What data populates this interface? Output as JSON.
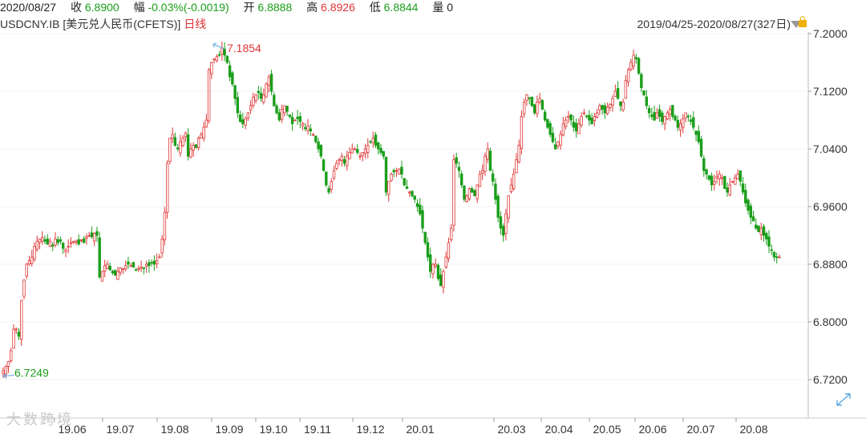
{
  "topbar": {
    "date": "2020/08/27",
    "close_label": "收",
    "close_value": "6.8900",
    "change_label": "幅",
    "change_value": "-0.03%(-0.0019)",
    "open_label": "开",
    "open_value": "6.8888",
    "high_label": "高",
    "high_value": "6.8926",
    "low_label": "低",
    "low_value": "6.8844",
    "volume_label": "量",
    "volume_value": "0"
  },
  "titlebar": {
    "symbol": "USDCNY.IB [美元兑人民币(CFETS)]",
    "period": "日线",
    "range": "2019/04/25-2020/08/27(327日)"
  },
  "watermark": "大数跨境",
  "colors": {
    "up": "#e03434",
    "down": "#1a9e1a",
    "axis": "#999999",
    "grid": "#f2f2f2"
  },
  "icons": [
    "dropdown-triangle-icon",
    "lock-icon",
    "expand-icon"
  ],
  "chart_data": {
    "type": "candlestick",
    "title": "USDCNY.IB [美元兑人民币(CFETS)]",
    "period": "日线",
    "y_ticks": [
      "7.2000",
      "7.1200",
      "7.0400",
      "6.9600",
      "6.8800",
      "6.8000",
      "6.7200"
    ],
    "ylim": [
      6.7,
      7.22
    ],
    "x_ticks": [
      "19.06",
      "19.07",
      "19.08",
      "19.09",
      "19.10",
      "19.11",
      "19.12",
      "20.01",
      "20.03",
      "20.04",
      "20.05",
      "20.06",
      "20.07",
      "20.08"
    ],
    "grid": true,
    "annotations": [
      {
        "text": "7.1854",
        "value": 7.1854
      },
      {
        "text": "6.7249",
        "value": 6.7249
      }
    ],
    "closes": [
      6.732,
      6.738,
      6.745,
      6.76,
      6.79,
      6.79,
      6.78,
      6.83,
      6.858,
      6.88,
      6.885,
      6.89,
      6.905,
      6.912,
      6.915,
      6.917,
      6.912,
      6.908,
      6.912,
      6.905,
      6.915,
      6.91,
      6.912,
      6.902,
      6.9,
      6.905,
      6.91,
      6.912,
      6.912,
      6.908,
      6.914,
      6.91,
      6.918,
      6.92,
      6.918,
      6.923,
      6.92,
      6.862,
      6.87,
      6.878,
      6.88,
      6.872,
      6.868,
      6.865,
      6.87,
      6.875,
      6.874,
      6.878,
      6.88,
      6.878,
      6.876,
      6.872,
      6.874,
      6.876,
      6.875,
      6.88,
      6.878,
      6.882,
      6.88,
      6.885,
      6.89,
      6.915,
      6.952,
      7.02,
      7.055,
      7.06,
      7.045,
      7.04,
      7.05,
      7.055,
      7.062,
      7.03,
      7.04,
      7.045,
      7.042,
      7.055,
      7.06,
      7.07,
      7.08,
      7.15,
      7.16,
      7.165,
      7.168,
      7.17,
      7.18,
      7.17,
      7.16,
      7.14,
      7.13,
      7.11,
      7.09,
      7.078,
      7.075,
      7.082,
      7.09,
      7.1,
      7.112,
      7.115,
      7.118,
      7.11,
      7.115,
      7.13,
      7.14,
      7.12,
      7.1,
      7.09,
      7.08,
      7.095,
      7.1,
      7.092,
      7.085,
      7.075,
      7.08,
      7.082,
      7.078,
      7.075,
      7.068,
      7.072,
      7.065,
      7.06,
      7.05,
      7.04,
      7.03,
      7.01,
      6.99,
      6.98,
      6.995,
      7.01,
      7.02,
      7.025,
      7.03,
      7.02,
      7.03,
      7.035,
      7.04,
      7.04,
      7.035,
      7.03,
      7.035,
      7.04,
      7.045,
      7.05,
      7.055,
      7.045,
      7.04,
      7.035,
      7.03,
      6.98,
      6.995,
      7.005,
      7.008,
      7.01,
      7.012,
      7.005,
      6.99,
      6.985,
      6.98,
      6.975,
      6.97,
      6.96,
      6.95,
      6.93,
      6.91,
      6.89,
      6.87,
      6.88,
      6.88,
      6.86,
      6.85,
      6.87,
      6.89,
      6.91,
      6.93,
      7.025,
      7.02,
      7.01,
      6.99,
      6.97,
      6.975,
      6.985,
      6.98,
      6.975,
      6.99,
      7.005,
      7.01,
      7.03,
      7.04,
      7.01,
      6.995,
      6.97,
      6.945,
      6.93,
      6.92,
      6.95,
      6.975,
      6.99,
      7.005,
      7.025,
      7.045,
      7.085,
      7.105,
      7.115,
      7.11,
      7.1,
      7.09,
      7.105,
      7.11,
      7.095,
      7.08,
      7.07,
      7.06,
      7.05,
      7.04,
      7.05,
      7.06,
      7.075,
      7.08,
      7.085,
      7.08,
      7.07,
      7.065,
      7.075,
      7.085,
      7.09,
      7.085,
      7.08,
      7.075,
      7.085,
      7.09,
      7.1,
      7.095,
      7.09,
      7.098,
      7.102,
      7.11,
      7.12,
      7.11,
      7.1,
      7.105,
      7.135,
      7.15,
      7.16,
      7.17,
      7.165,
      7.145,
      7.125,
      7.115,
      7.1,
      7.09,
      7.085,
      7.08,
      7.09,
      7.085,
      7.078,
      7.085,
      7.09,
      7.095,
      7.085,
      7.08,
      7.07,
      7.075,
      7.082,
      7.09,
      7.085,
      7.078,
      7.07,
      7.06,
      7.05,
      7.03,
      7.01,
      7.005,
      6.998,
      6.99,
      6.995,
      7.002,
      7.005,
      7.0,
      6.985,
      6.98,
      6.99,
      6.995,
      7.0,
      7.005,
      6.995,
      6.98,
      6.965,
      6.955,
      6.945,
      6.94,
      6.93,
      6.925,
      6.93,
      6.92,
      6.915,
      6.905,
      6.9,
      6.89,
      6.89,
      6.89
    ]
  }
}
